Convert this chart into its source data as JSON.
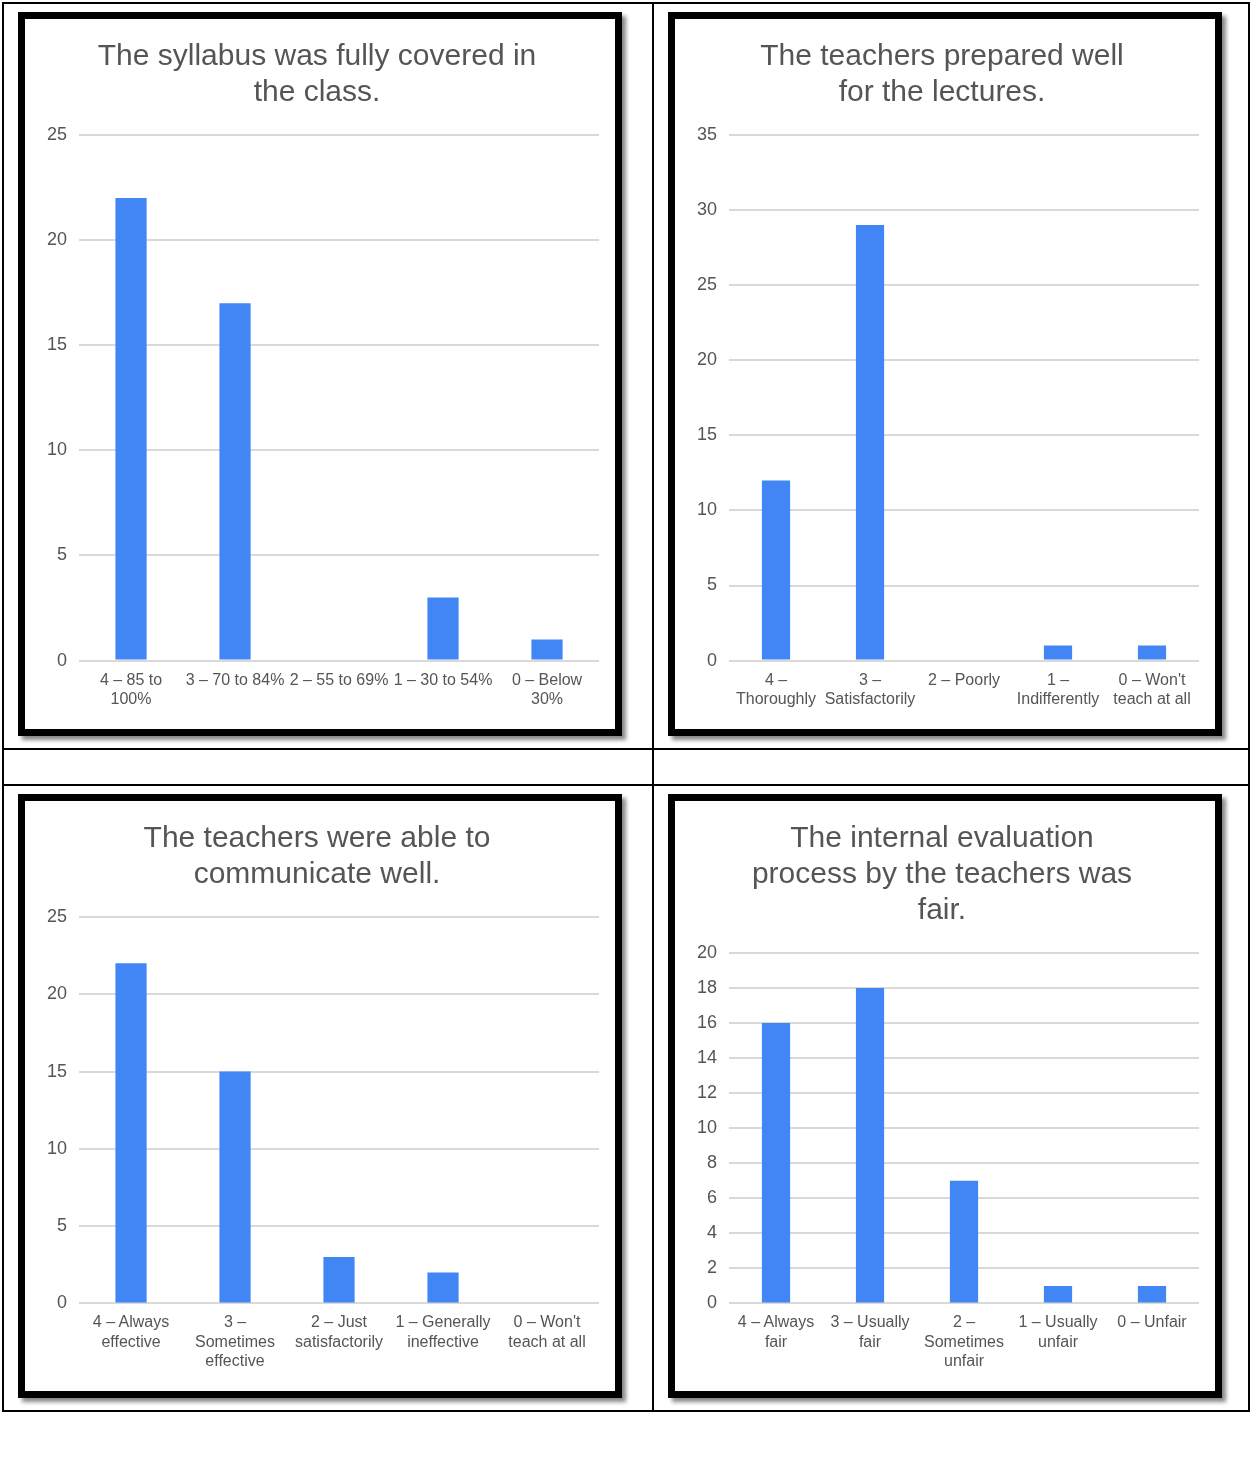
{
  "chart_data": [
    {
      "type": "bar",
      "title": "The syllabus was fully covered in the class.",
      "categories": [
        "4 – 85 to 100%",
        "3 – 70 to 84%",
        "2 – 55 to 69%",
        "1 – 30 to 54%",
        "0 – Below 30%"
      ],
      "values": [
        22,
        17,
        0,
        3,
        1
      ],
      "color": "#4285f4",
      "ylim": [
        0,
        25
      ],
      "yticks": [
        0,
        5,
        10,
        15,
        20,
        25
      ],
      "grid": "y",
      "legend": false
    },
    {
      "type": "bar",
      "title": "The teachers prepared well for the lectures.",
      "categories": [
        "4 – Thoroughly",
        "3 – Satisfactorily",
        "2 – Poorly",
        "1 – Indifferently",
        "0 – Won't teach at all"
      ],
      "values": [
        12,
        29,
        0,
        1,
        1
      ],
      "color": "#4285f4",
      "ylim": [
        0,
        35
      ],
      "yticks": [
        0,
        5,
        10,
        15,
        20,
        25,
        30,
        35
      ],
      "grid": "y",
      "legend": false
    },
    {
      "type": "bar",
      "title": "The teachers were able to communicate well.",
      "categories": [
        "4 – Always effective",
        "3 – Sometimes effective",
        "2 – Just satisfactorily",
        "1 – Generally ineffective",
        "0 – Won't teach at all"
      ],
      "values": [
        22,
        15,
        3,
        2,
        0
      ],
      "color": "#4285f4",
      "ylim": [
        0,
        25
      ],
      "yticks": [
        0,
        5,
        10,
        15,
        20,
        25
      ],
      "grid": "y",
      "legend": false
    },
    {
      "type": "bar",
      "title": "The internal evaluation process by the teachers was fair.",
      "categories": [
        "4 – Always fair",
        "3 – Usually fair",
        "2 – Sometimes unfair",
        "1 – Usually unfair",
        "0 – Unfair"
      ],
      "values": [
        16,
        18,
        7,
        1,
        1
      ],
      "color": "#4285f4",
      "ylim": [
        0,
        20
      ],
      "yticks": [
        0,
        2,
        4,
        6,
        8,
        10,
        12,
        14,
        16,
        18,
        20
      ],
      "grid": "y",
      "legend": false
    }
  ]
}
